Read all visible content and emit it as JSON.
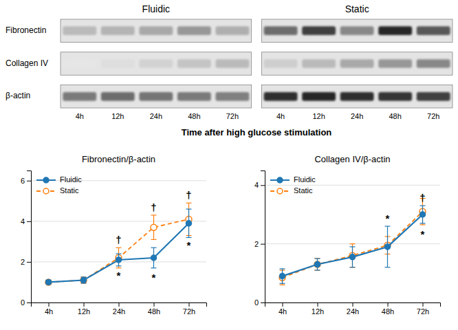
{
  "chart_data": [
    {
      "type": "heatmap",
      "xlabel": "Time after high glucose stimulation",
      "categories": [
        "4h",
        "12h",
        "24h",
        "48h",
        "72h"
      ],
      "rows": [
        "Fibronectin",
        "Collagen IV",
        "β-actin"
      ],
      "series": [
        {
          "name": "Fluidic",
          "values": [
            [
              0.38,
              0.4,
              0.44,
              0.5,
              0.42
            ],
            [
              0.18,
              0.22,
              0.28,
              0.34,
              0.38
            ],
            [
              0.6,
              0.65,
              0.62,
              0.6,
              0.58
            ]
          ]
        },
        {
          "name": "Static",
          "values": [
            [
              0.65,
              0.8,
              0.55,
              0.88,
              0.72
            ],
            [
              0.3,
              0.38,
              0.44,
              0.5,
              0.55
            ],
            [
              0.85,
              0.88,
              0.85,
              0.83,
              0.8
            ]
          ]
        }
      ]
    },
    {
      "type": "line",
      "title": "Fibronectin/β-actin",
      "categories": [
        "4h",
        "12h",
        "24h",
        "48h",
        "72h"
      ],
      "series": [
        {
          "name": "Fluidic",
          "values": [
            1.0,
            1.1,
            2.1,
            2.2,
            3.9
          ],
          "errors": [
            0.1,
            0.15,
            0.3,
            0.5,
            0.7
          ],
          "line_style": "solid",
          "marker": "circle"
        },
        {
          "name": "Static",
          "values": [
            1.0,
            1.1,
            2.2,
            3.7,
            4.1
          ],
          "errors": [
            0.1,
            0.15,
            0.5,
            0.6,
            0.8
          ],
          "line_style": "dashed",
          "marker": "circle-open"
        }
      ],
      "ylim": [
        0,
        6.5
      ],
      "yticks": [
        0,
        2,
        4,
        6
      ],
      "grid": true,
      "legend": "upper-left",
      "annotations": [
        {
          "text": "*",
          "x": "24h",
          "series": "Fluidic",
          "position": "below"
        },
        {
          "text": "*",
          "x": "48h",
          "series": "Fluidic",
          "position": "below"
        },
        {
          "text": "*",
          "x": "72h",
          "series": "Static",
          "position": "below"
        },
        {
          "text": "†",
          "x": "24h",
          "series": "Static",
          "position": "above"
        },
        {
          "text": "†",
          "x": "48h",
          "series": "Static",
          "position": "above"
        },
        {
          "text": "†",
          "x": "72h",
          "series": "Static",
          "position": "above"
        }
      ]
    },
    {
      "type": "line",
      "title": "Collagen IV/β-actin",
      "categories": [
        "4h",
        "12h",
        "24h",
        "48h",
        "72h"
      ],
      "series": [
        {
          "name": "Fluidic",
          "values": [
            0.9,
            1.3,
            1.55,
            1.9,
            3.0
          ],
          "errors": [
            0.25,
            0.2,
            0.35,
            0.7,
            0.3
          ],
          "line_style": "solid",
          "marker": "circle"
        },
        {
          "name": "Static",
          "values": [
            0.85,
            1.3,
            1.6,
            1.95,
            3.1
          ],
          "errors": [
            0.25,
            0.2,
            0.4,
            0.3,
            0.45
          ],
          "line_style": "dashed",
          "marker": "circle-open"
        }
      ],
      "ylim": [
        0,
        4.5
      ],
      "yticks": [
        0,
        2,
        4
      ],
      "grid": true,
      "legend": "upper-left",
      "annotations": [
        {
          "text": "*",
          "x": "48h",
          "series": "Fluidic",
          "position": "above"
        },
        {
          "text": "†",
          "x": "72h",
          "series": "Fluidic",
          "position": "above"
        },
        {
          "text": "*",
          "x": "72h",
          "series": "Static",
          "position": "below"
        }
      ]
    }
  ]
}
